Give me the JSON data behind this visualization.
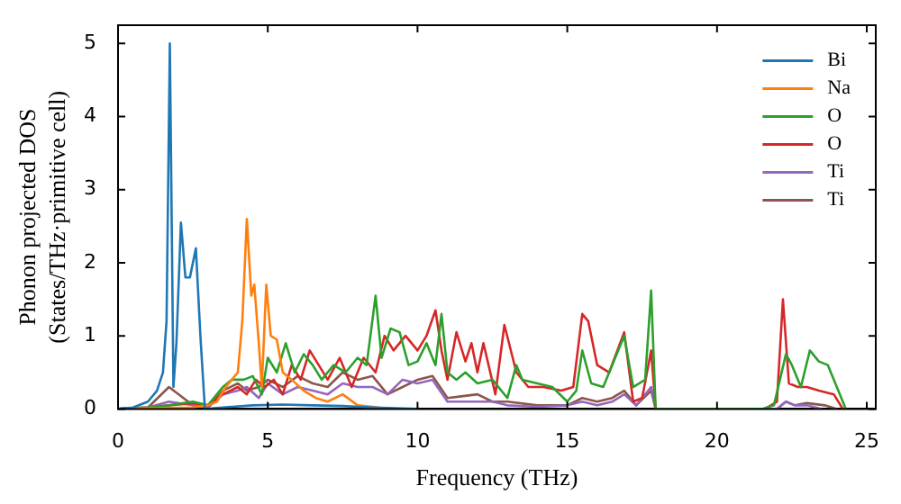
{
  "chart_data": {
    "type": "line",
    "xlabel": "Frequency (THz)",
    "ylabel": "Phonon projected DOS\n(States/THz·primitive cell)",
    "xlim": [
      0,
      25.3
    ],
    "ylim": [
      0,
      5.25
    ],
    "xticks": [
      0,
      5,
      10,
      15,
      20,
      25
    ],
    "yticks": [
      0,
      1,
      2,
      3,
      4,
      5
    ],
    "legend": "top right",
    "series": [
      {
        "name": "Bi",
        "color": "#1f77b4",
        "x": [
          0,
          0.5,
          1.0,
          1.3,
          1.5,
          1.62,
          1.73,
          1.85,
          1.95,
          2.1,
          2.25,
          2.4,
          2.6,
          2.75,
          2.9,
          3.5,
          4.5,
          5.5,
          6.5,
          7.5,
          8.5,
          10
        ],
        "values": [
          0,
          0.02,
          0.1,
          0.25,
          0.5,
          1.2,
          5.0,
          0.3,
          0.9,
          2.55,
          1.8,
          1.8,
          2.2,
          1.0,
          0,
          0.02,
          0.05,
          0.06,
          0.05,
          0.04,
          0.02,
          0
        ]
      },
      {
        "name": "Na",
        "color": "#ff7f0e",
        "x": [
          0,
          2.5,
          3.0,
          3.3,
          3.6,
          3.8,
          4.0,
          4.15,
          4.3,
          4.45,
          4.55,
          4.7,
          4.8,
          4.95,
          5.1,
          5.3,
          5.5,
          5.8,
          6.2,
          6.6,
          7.0,
          7.5,
          8.0,
          8.5,
          9.0
        ],
        "values": [
          0,
          0.02,
          0.05,
          0.1,
          0.3,
          0.4,
          0.5,
          1.2,
          2.6,
          1.55,
          1.7,
          0.9,
          0.3,
          1.7,
          1.0,
          0.95,
          0.5,
          0.4,
          0.25,
          0.15,
          0.1,
          0.2,
          0.05,
          0.03,
          0
        ]
      },
      {
        "name": "O",
        "color": "#2ca02c",
        "x": [
          0,
          1,
          1.7,
          2.5,
          3.0,
          3.5,
          3.8,
          4.2,
          4.5,
          4.8,
          5.0,
          5.3,
          5.6,
          5.9,
          6.2,
          6.5,
          6.8,
          7.2,
          7.6,
          8.0,
          8.3,
          8.6,
          8.8,
          9.1,
          9.4,
          9.7,
          10.0,
          10.3,
          10.6,
          10.8,
          11.0,
          11.3,
          11.6,
          12.0,
          12.5,
          13.0,
          13.3,
          13.5,
          14.0,
          14.5,
          15.0,
          15.3,
          15.5,
          15.8,
          16.2,
          16.6,
          16.9,
          17.2,
          17.6,
          17.8,
          17.95,
          18.2,
          21.5,
          21.9,
          22.1,
          22.3,
          22.5,
          22.8,
          23.1,
          23.4,
          23.7,
          24.0,
          24.3
        ],
        "values": [
          0,
          0.02,
          0.05,
          0.1,
          0.05,
          0.3,
          0.4,
          0.4,
          0.45,
          0.2,
          0.7,
          0.5,
          0.9,
          0.5,
          0.75,
          0.6,
          0.4,
          0.6,
          0.5,
          0.7,
          0.6,
          1.55,
          0.7,
          1.1,
          1.05,
          0.6,
          0.65,
          0.9,
          0.6,
          1.3,
          0.5,
          0.4,
          0.5,
          0.35,
          0.4,
          0.15,
          0.6,
          0.4,
          0.35,
          0.3,
          0.1,
          0.25,
          0.8,
          0.35,
          0.3,
          0.7,
          1.0,
          0.3,
          0.4,
          1.62,
          0,
          0,
          0,
          0.05,
          0.4,
          0.75,
          0.6,
          0.3,
          0.8,
          0.65,
          0.6,
          0.3,
          0
        ]
      },
      {
        "name": "O",
        "color": "#d62728",
        "x": [
          0,
          1,
          1.7,
          2.5,
          3.0,
          3.5,
          4.0,
          4.3,
          4.6,
          4.9,
          5.2,
          5.5,
          5.8,
          6.1,
          6.4,
          6.7,
          7.0,
          7.4,
          7.8,
          8.2,
          8.6,
          8.9,
          9.2,
          9.6,
          10.0,
          10.3,
          10.6,
          10.8,
          11.0,
          11.3,
          11.6,
          11.8,
          12.0,
          12.2,
          12.6,
          12.9,
          13.3,
          13.7,
          14.2,
          14.8,
          15.2,
          15.5,
          15.7,
          16.0,
          16.4,
          16.9,
          17.2,
          17.5,
          17.8,
          17.95,
          18.2,
          21.6,
          22.0,
          22.2,
          22.4,
          22.7,
          23.0,
          23.4,
          23.9,
          24.2
        ],
        "values": [
          0,
          0.02,
          0.05,
          0.08,
          0.05,
          0.2,
          0.3,
          0.2,
          0.4,
          0.3,
          0.4,
          0.2,
          0.6,
          0.4,
          0.8,
          0.6,
          0.4,
          0.7,
          0.3,
          0.7,
          0.5,
          1.0,
          0.8,
          1.0,
          0.8,
          1.0,
          1.35,
          0.8,
          0.4,
          1.05,
          0.65,
          0.9,
          0.5,
          0.9,
          0.2,
          1.15,
          0.5,
          0.3,
          0.3,
          0.25,
          0.3,
          1.3,
          1.2,
          0.6,
          0.5,
          1.05,
          0.1,
          0.15,
          0.8,
          0,
          0,
          0,
          0.1,
          1.5,
          0.35,
          0.3,
          0.3,
          0.25,
          0.2,
          0
        ]
      },
      {
        "name": "Ti",
        "color": "#9467bd",
        "x": [
          0,
          1,
          1.7,
          2.5,
          3.0,
          3.5,
          4.0,
          4.3,
          4.7,
          5.0,
          5.5,
          6.0,
          6.5,
          7.0,
          7.5,
          8.0,
          8.5,
          9.0,
          9.5,
          10.0,
          10.5,
          11.0,
          12.0,
          12.5,
          13.0,
          14.0,
          15.0,
          15.5,
          16.0,
          16.5,
          16.9,
          17.3,
          17.8,
          17.95,
          18.2,
          22.0,
          22.3,
          22.6,
          23.0,
          23.5
        ],
        "values": [
          0,
          0.02,
          0.1,
          0.05,
          0.02,
          0.2,
          0.25,
          0.3,
          0.15,
          0.35,
          0.2,
          0.3,
          0.25,
          0.2,
          0.35,
          0.3,
          0.3,
          0.2,
          0.4,
          0.35,
          0.4,
          0.1,
          0.1,
          0.1,
          0.05,
          0.03,
          0.05,
          0.1,
          0.05,
          0.1,
          0.2,
          0.05,
          0.3,
          0,
          0,
          0,
          0.1,
          0.05,
          0.05,
          0
        ]
      },
      {
        "name": "Ti",
        "color": "#8c564b",
        "x": [
          0,
          1,
          1.7,
          2.5,
          3.0,
          3.5,
          4.0,
          4.3,
          4.7,
          5.0,
          5.5,
          6.0,
          6.5,
          7.0,
          7.5,
          8.0,
          8.5,
          9.0,
          9.5,
          10.0,
          10.5,
          11.0,
          12.0,
          12.5,
          13.0,
          14.0,
          15.0,
          15.5,
          16.0,
          16.5,
          16.9,
          17.3,
          17.8,
          17.95,
          18.2,
          22.0,
          22.3,
          22.6,
          23.0,
          23.6,
          24.0
        ],
        "values": [
          0,
          0.02,
          0.3,
          0.05,
          0.02,
          0.25,
          0.35,
          0.25,
          0.3,
          0.4,
          0.3,
          0.45,
          0.35,
          0.3,
          0.5,
          0.4,
          0.45,
          0.2,
          0.3,
          0.4,
          0.45,
          0.15,
          0.2,
          0.1,
          0.1,
          0.05,
          0.05,
          0.15,
          0.1,
          0.15,
          0.25,
          0.05,
          0.25,
          0,
          0,
          0,
          0.1,
          0.05,
          0.08,
          0.05,
          0
        ]
      }
    ]
  }
}
